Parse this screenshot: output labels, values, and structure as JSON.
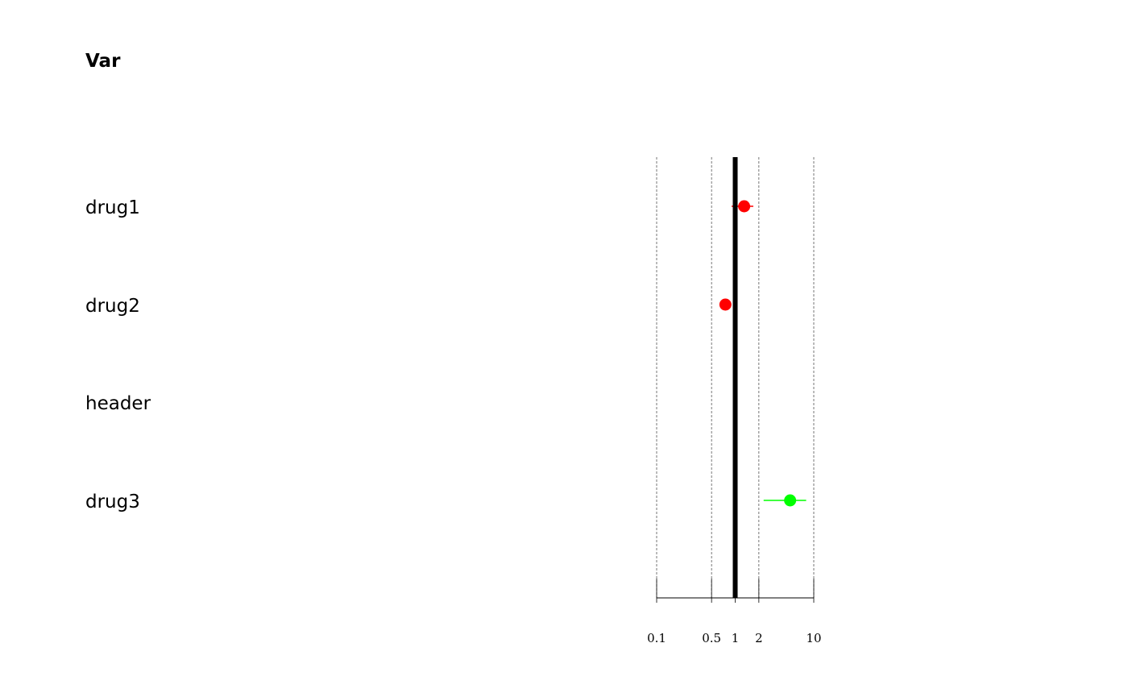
{
  "chart_data": {
    "type": "forest",
    "column_header": "Var",
    "reference_value": 1,
    "x_scale": "log",
    "xlim": [
      0.1,
      10
    ],
    "x_ticks": [
      0.1,
      0.5,
      1,
      2,
      10
    ],
    "x_tick_labels": [
      "0.1",
      "0.5",
      "1",
      "2",
      "10"
    ],
    "grid": true,
    "rows": [
      {
        "label": "drug1",
        "estimate": 1.3,
        "lower": 0.9,
        "upper": 1.7,
        "color": "#ff0000"
      },
      {
        "label": "drug2",
        "estimate": 0.75,
        "lower": 0.7,
        "upper": 0.8,
        "color": "#ff0000"
      },
      {
        "label": "header",
        "estimate": null,
        "lower": null,
        "upper": null,
        "color": null
      },
      {
        "label": "drug3",
        "estimate": 5,
        "lower": 2.3,
        "upper": 8,
        "color": "#00ff00"
      }
    ]
  }
}
